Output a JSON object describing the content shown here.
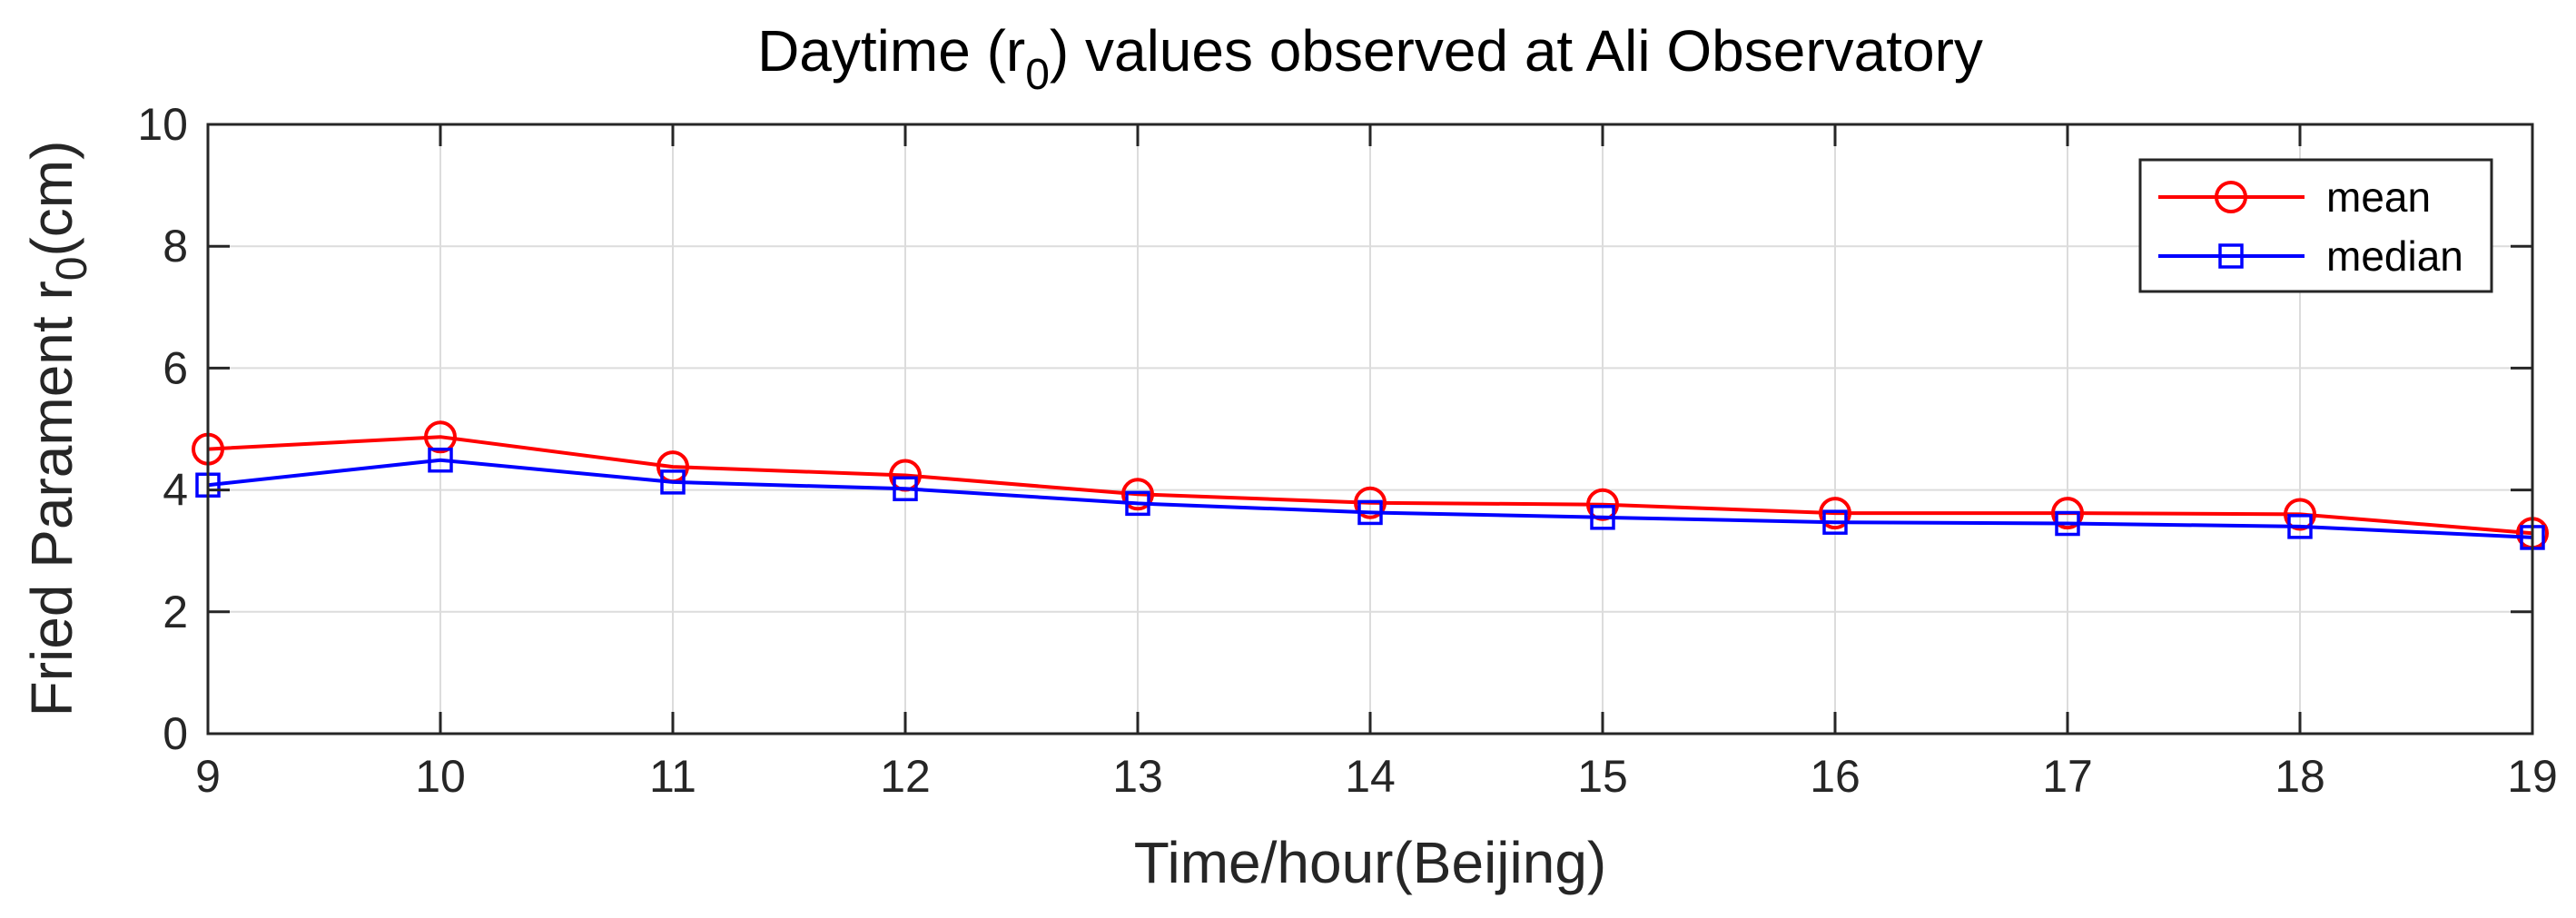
{
  "chart_data": {
    "type": "line",
    "title_main": "Daytime (r",
    "title_sub": "0",
    "title_rest": ") values observed at Ali Observatory",
    "xlabel": "Time/hour(Beijing)",
    "ylabel_main": "Fried Parament r",
    "ylabel_sub": "0",
    "ylabel_rest": "(cm)",
    "xlim": [
      9,
      19
    ],
    "ylim": [
      0,
      10
    ],
    "x_ticks": [
      "9",
      "10",
      "11",
      "12",
      "13",
      "14",
      "15",
      "16",
      "17",
      "18",
      "19"
    ],
    "y_ticks": [
      "0",
      "2",
      "4",
      "6",
      "8",
      "10"
    ],
    "grid": true,
    "legend_position": "top-right",
    "x": [
      9,
      10,
      11,
      12,
      13,
      14,
      15,
      16,
      17,
      18,
      19
    ],
    "series": [
      {
        "name": "mean",
        "color": "#ff0000",
        "marker": "circle",
        "values": [
          4.67,
          4.87,
          4.38,
          4.24,
          3.93,
          3.79,
          3.76,
          3.62,
          3.62,
          3.6,
          3.29
        ]
      },
      {
        "name": "median",
        "color": "#0000ff",
        "marker": "square",
        "values": [
          4.08,
          4.49,
          4.13,
          4.02,
          3.78,
          3.63,
          3.55,
          3.47,
          3.45,
          3.4,
          3.22
        ]
      }
    ]
  }
}
